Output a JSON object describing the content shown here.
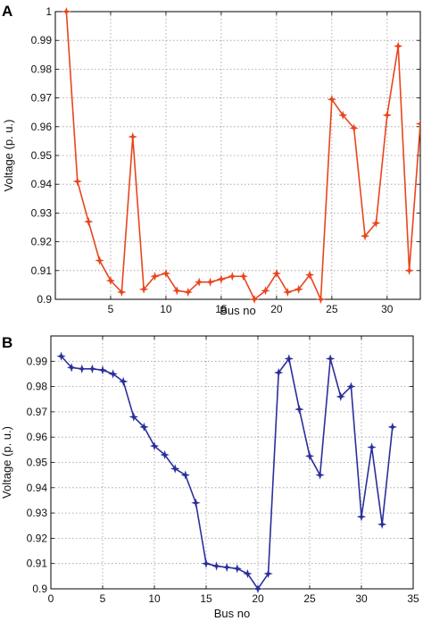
{
  "chart_data": [
    {
      "panel_label": "A",
      "type": "line",
      "xlabel": "Bus no",
      "ylabel": "Voltage (p. u.)",
      "xlim": [
        0,
        33
      ],
      "ylim": [
        0.9,
        1.0
      ],
      "x_ticks": [
        "5",
        "10",
        "15",
        "20",
        "25",
        "30"
      ],
      "y_ticks": [
        "0.9",
        "0.91",
        "0.92",
        "0.93",
        "0.94",
        "0.95",
        "0.96",
        "0.97",
        "0.98",
        "0.99",
        "1"
      ],
      "grid": "dotted",
      "color": "#e8451e",
      "marker": "star",
      "x": [
        1,
        2,
        3,
        4,
        5,
        6,
        7,
        8,
        9,
        10,
        11,
        12,
        13,
        14,
        15,
        16,
        17,
        18,
        19,
        20,
        21,
        22,
        23,
        24,
        25,
        26,
        27,
        28,
        29,
        30,
        31,
        32,
        33
      ],
      "values": [
        1.0,
        0.941,
        0.927,
        0.9135,
        0.9065,
        0.9025,
        0.9565,
        0.9035,
        0.908,
        0.909,
        0.903,
        0.9025,
        0.906,
        0.906,
        0.907,
        0.908,
        0.908,
        0.9,
        0.903,
        0.909,
        0.9025,
        0.9035,
        0.9085,
        0.9,
        0.9695,
        0.964,
        0.9595,
        0.922,
        0.9265,
        0.964,
        0.988,
        0.91,
        0.961
      ]
    },
    {
      "panel_label": "B",
      "type": "line",
      "xlabel": "Bus no",
      "ylabel": "Voltage (p. u.)",
      "xlim": [
        0,
        35
      ],
      "ylim": [
        0.9,
        1.0
      ],
      "x_ticks": [
        "0",
        "5",
        "10",
        "15",
        "20",
        "25",
        "30",
        "35"
      ],
      "y_ticks": [
        "0.9",
        "0.91",
        "0.92",
        "0.93",
        "0.94",
        "0.95",
        "0.96",
        "0.97",
        "0.98",
        "0.99"
      ],
      "grid": "dotted",
      "color": "#2b2f9a",
      "marker": "star",
      "x": [
        1,
        2,
        3,
        4,
        5,
        6,
        7,
        8,
        9,
        10,
        11,
        12,
        13,
        14,
        15,
        16,
        17,
        18,
        19,
        20,
        21,
        22,
        23,
        24,
        25,
        26,
        27,
        28,
        29,
        30,
        31,
        32,
        33
      ],
      "values": [
        0.992,
        0.9875,
        0.987,
        0.987,
        0.9865,
        0.985,
        0.982,
        0.968,
        0.964,
        0.9565,
        0.953,
        0.9475,
        0.945,
        0.934,
        0.91,
        0.909,
        0.9085,
        0.908,
        0.906,
        0.9,
        0.906,
        0.9855,
        0.991,
        0.971,
        0.9525,
        0.945,
        0.991,
        0.976,
        0.98,
        0.9285,
        0.956,
        0.9255,
        0.964
      ]
    }
  ]
}
